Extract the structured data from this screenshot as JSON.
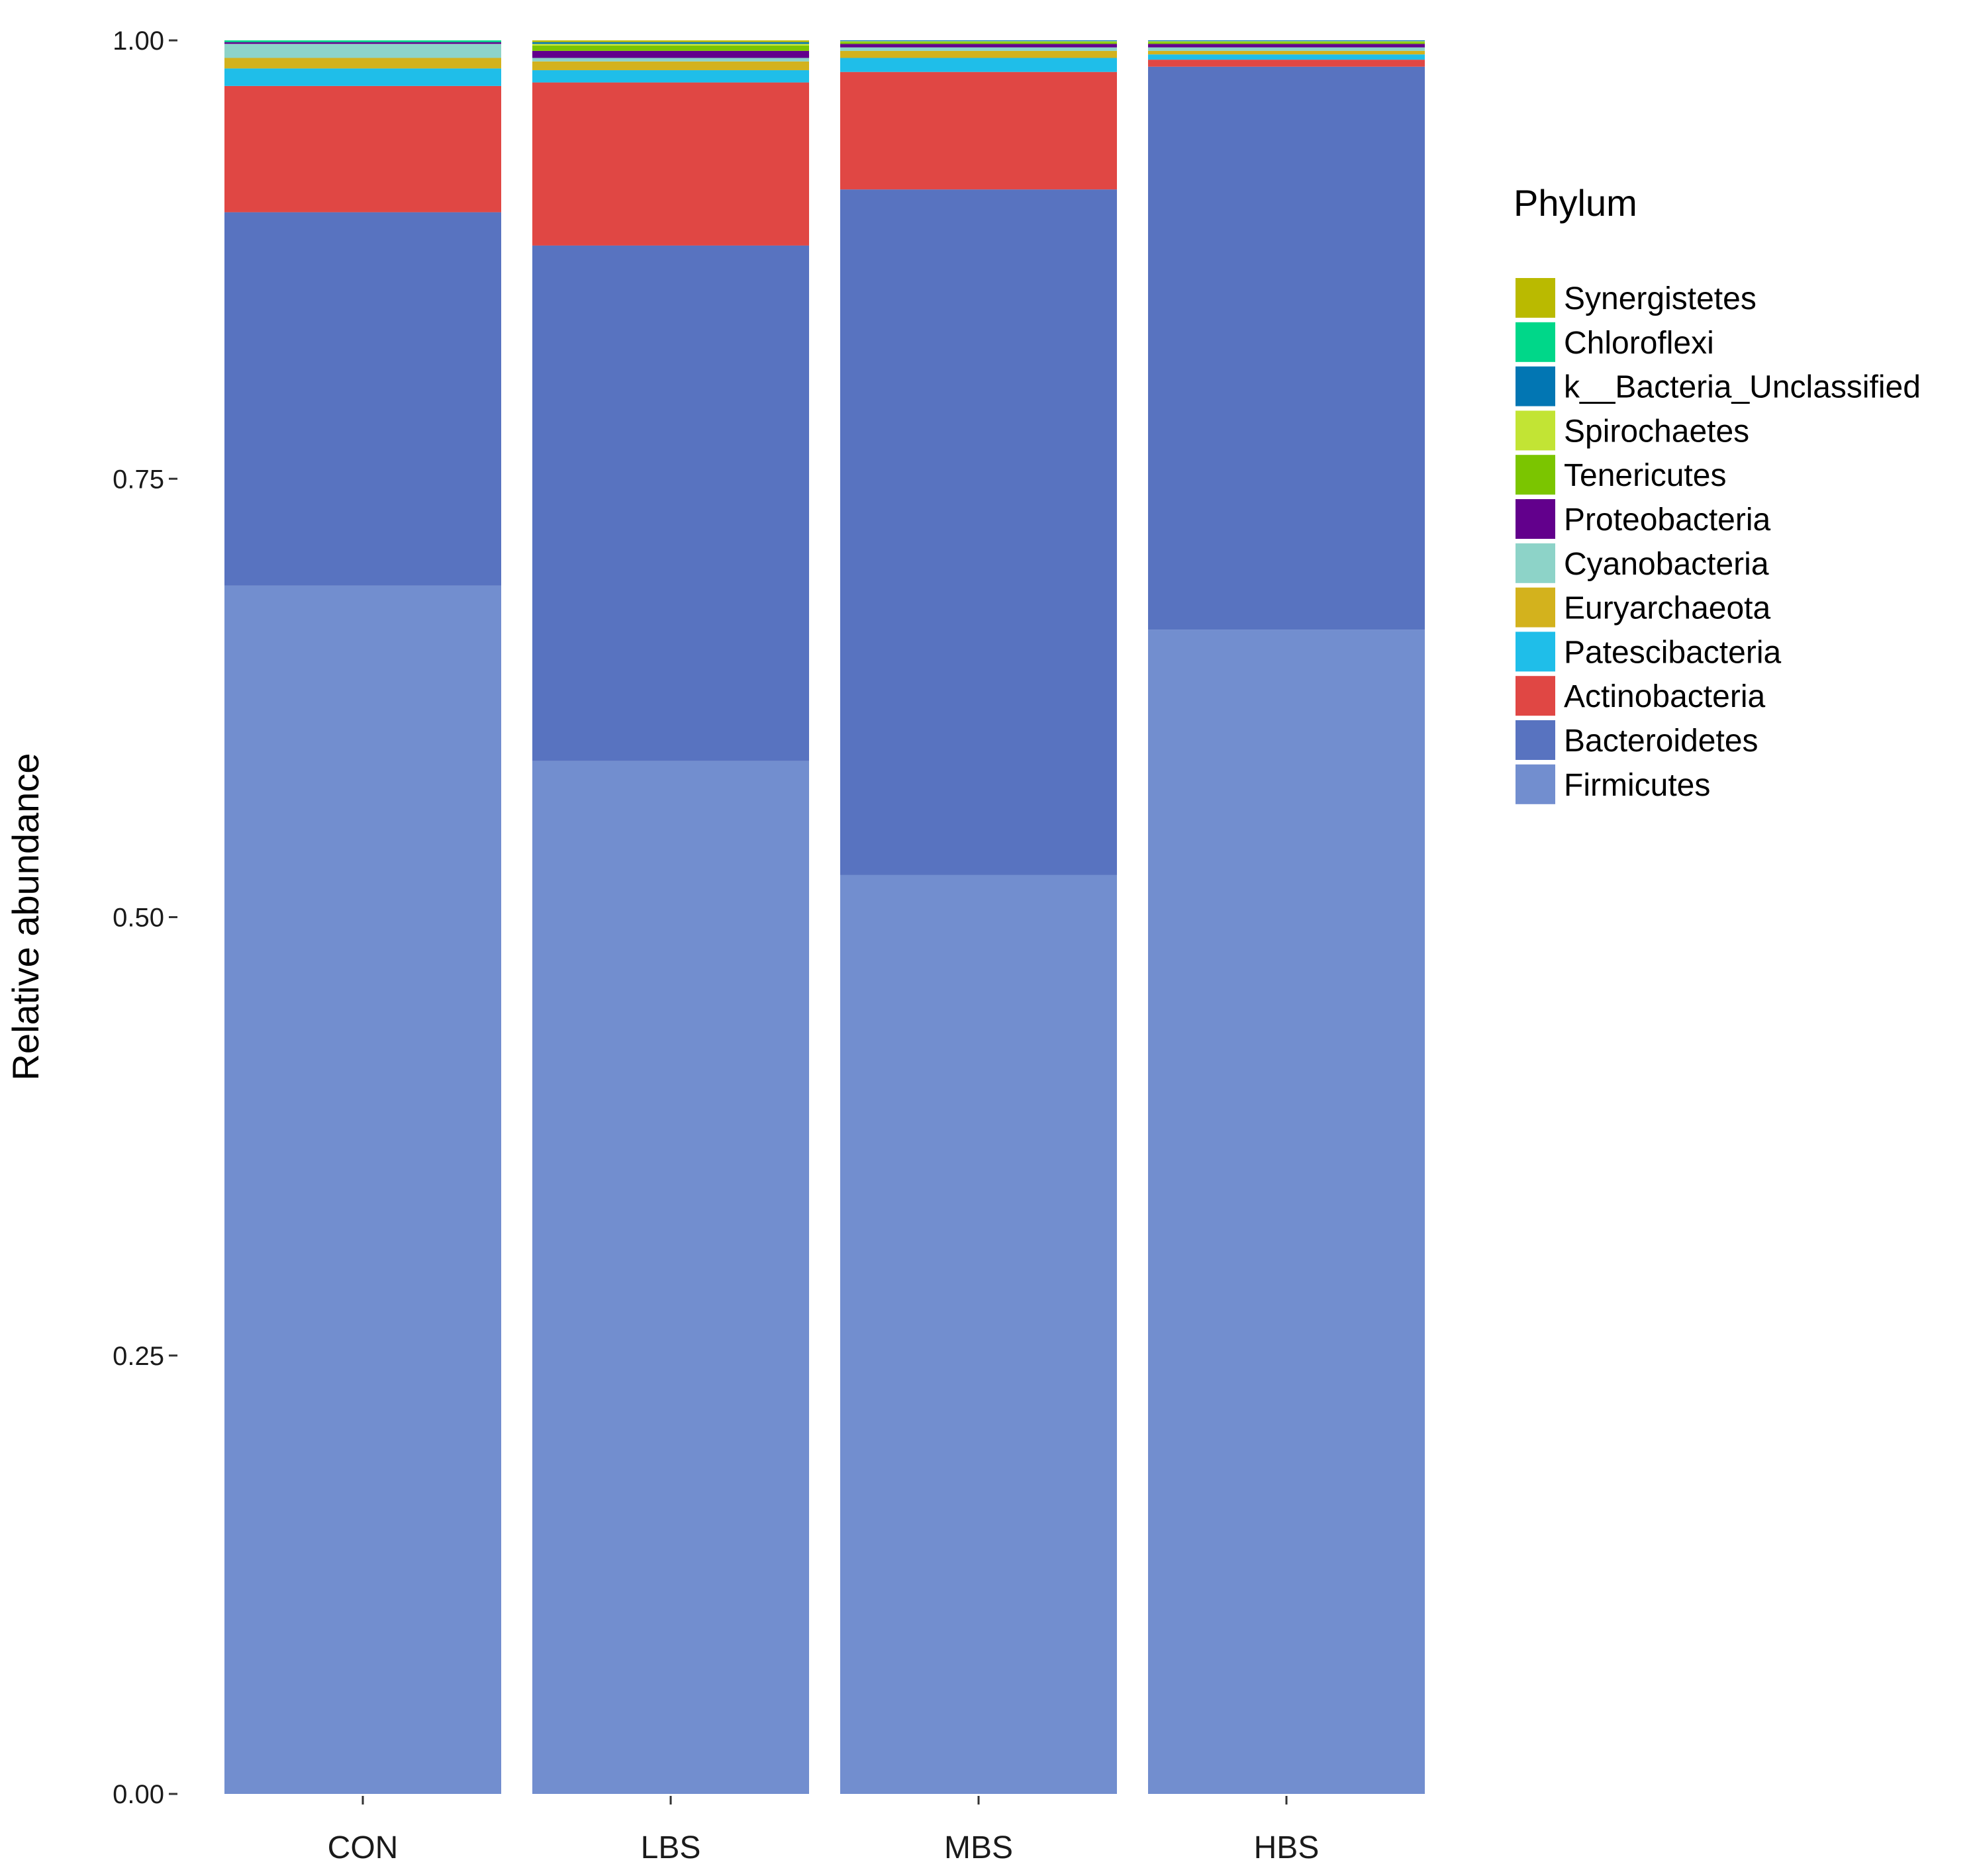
{
  "chart_data": {
    "type": "bar",
    "stacked": true,
    "title": "",
    "xlabel": "",
    "ylabel": "Relative abundance",
    "ylim": [
      0,
      1
    ],
    "yticks": [
      "0.00",
      "0.25",
      "0.50",
      "0.75",
      "1.00"
    ],
    "yticks_values": [
      0,
      0.25,
      0.5,
      0.75,
      1.0
    ],
    "categories": [
      "CON",
      "LBS",
      "MBS",
      "HBS"
    ],
    "legend_title": "Phylum",
    "legend_position": "right",
    "series": [
      {
        "name": "Firmicutes",
        "color": "#728ECF",
        "values": [
          0.689,
          0.589,
          0.524,
          0.664
        ]
      },
      {
        "name": "Bacteroidetes",
        "color": "#5873C0",
        "values": [
          0.213,
          0.294,
          0.391,
          0.321
        ]
      },
      {
        "name": "Actinobacteria",
        "color": "#E04744",
        "values": [
          0.072,
          0.093,
          0.067,
          0.004
        ]
      },
      {
        "name": "Patescibacteria",
        "color": "#1FBEE9",
        "values": [
          0.01,
          0.007,
          0.008,
          0.003
        ]
      },
      {
        "name": "Euryarchaeota",
        "color": "#D3B21D",
        "values": [
          0.006,
          0.005,
          0.004,
          0.002
        ]
      },
      {
        "name": "Cyanobacteria",
        "color": "#8DD3C8",
        "values": [
          0.008,
          0.002,
          0.002,
          0.002
        ]
      },
      {
        "name": "Proteobacteria",
        "color": "#62008C",
        "values": [
          0.001,
          0.004,
          0.002,
          0.002
        ]
      },
      {
        "name": "Tenericutes",
        "color": "#7BC500",
        "values": [
          0.0,
          0.003,
          0.001,
          0.001
        ]
      },
      {
        "name": "Spirochaetes",
        "color": "#C2E434",
        "values": [
          0.0,
          0.001,
          0.0005,
          0.0005
        ]
      },
      {
        "name": "k__Bacteria_Unclassified",
        "color": "#0276B3",
        "values": [
          0.0,
          0.001,
          0.0005,
          0.0005
        ]
      },
      {
        "name": "Chloroflexi",
        "color": "#00D789",
        "values": [
          0.001,
          0.0,
          0.0,
          0.0
        ]
      },
      {
        "name": "Synergistetes",
        "color": "#BABA00",
        "values": [
          0.0,
          0.001,
          0.0,
          0.0
        ]
      }
    ]
  }
}
